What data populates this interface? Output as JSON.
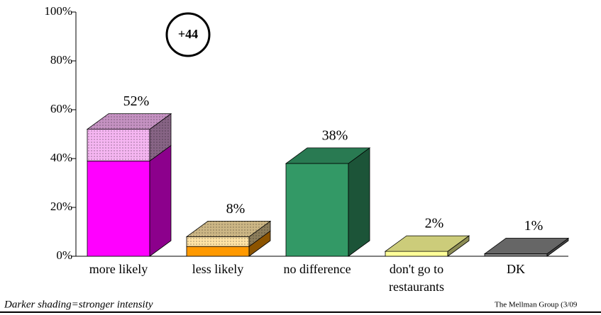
{
  "chart_data": {
    "type": "bar3d_stacked",
    "categories": [
      "more likely",
      "less likely",
      "no difference",
      "don't go to restaurants",
      "DK"
    ],
    "series": [
      {
        "values": [
          39,
          4,
          38,
          2,
          1
        ],
        "colors": [
          "#ff00ff",
          "#ff9900",
          "#339966",
          "#ffff99",
          "#808080"
        ]
      },
      {
        "values": [
          13,
          4,
          null,
          null,
          null
        ],
        "colors": [
          "#f6b6f2",
          "#ffe3a6",
          null,
          null,
          null
        ]
      }
    ],
    "totals": [
      52,
      8,
      38,
      2,
      1
    ],
    "total_labels": [
      "52%",
      "8%",
      "38%",
      "2%",
      "1%"
    ],
    "ylim": [
      0,
      100
    ],
    "yticks": [
      {
        "value": 0,
        "label": "0%"
      },
      {
        "value": 20,
        "label": "20%"
      },
      {
        "value": 40,
        "label": "40%"
      },
      {
        "value": 60,
        "label": "60%"
      },
      {
        "value": 80,
        "label": "80%"
      },
      {
        "value": 100,
        "label": "100%"
      }
    ],
    "annotation": "+44",
    "footnote": "Darker shading=stronger intensity",
    "source": "The Mellman Group (3/09"
  }
}
